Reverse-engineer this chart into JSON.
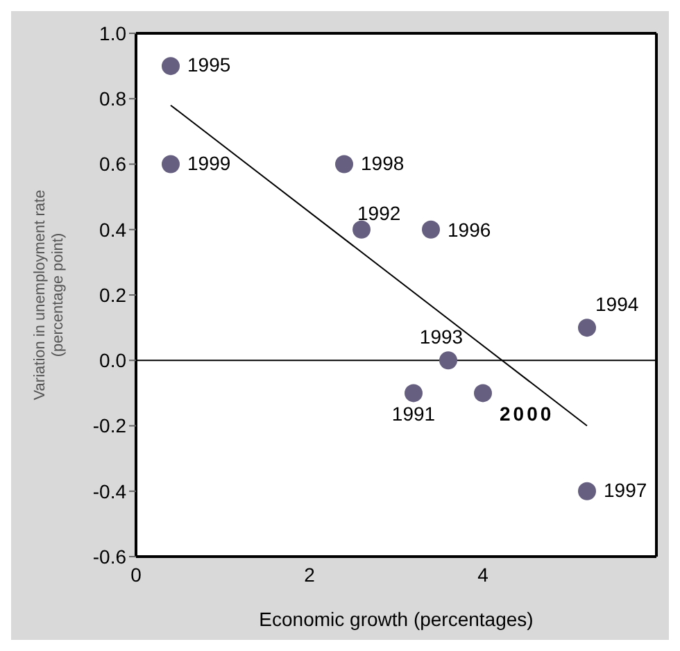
{
  "chart_data": {
    "type": "scatter",
    "xlabel": "Economic growth (percentages)",
    "ylabel": "Variation in unemployment rate\n(percentage point)",
    "xlim": [
      0,
      6
    ],
    "xticks": [
      0,
      2,
      4
    ],
    "ylim": [
      -0.6,
      1.0
    ],
    "yticks": [
      {
        "value": -0.6,
        "label": "-0.6"
      },
      {
        "value": -0.4,
        "label": "-0.4"
      },
      {
        "value": -0.2,
        "label": "-0.2"
      },
      {
        "value": 0,
        "label": "0.0"
      },
      {
        "value": 0.2,
        "label": "0.2"
      },
      {
        "value": 0.4,
        "label": "0.4"
      },
      {
        "value": 0.6,
        "label": "0.6"
      },
      {
        "value": 0.8,
        "label": "0.8"
      },
      {
        "value": 1.0,
        "label": "1.0"
      }
    ],
    "marker": "circle",
    "ref_lines": [
      {
        "axis": "y",
        "value": 0,
        "color": "#000000"
      }
    ],
    "annotations": [
      {
        "text": "1995",
        "x": 0.4,
        "y": 0.9
      },
      {
        "text": "1999",
        "x": 0.4,
        "y": 0.6
      },
      {
        "text": "1998",
        "x": 2.4,
        "y": 0.6
      },
      {
        "text": "1992",
        "x": 2.6,
        "y": 0.4
      },
      {
        "text": "1996",
        "x": 3.4,
        "y": 0.4
      },
      {
        "text": "1994",
        "x": 5.2,
        "y": 0.1
      },
      {
        "text": "1993",
        "x": 3.6,
        "y": 0.0
      },
      {
        "text": "1991",
        "x": 3.2,
        "y": -0.1
      },
      {
        "text": "2000",
        "x": 4.0,
        "y": -0.1
      },
      {
        "text": "1997",
        "x": 5.2,
        "y": -0.4
      }
    ],
    "series": [
      {
        "color": "#665f80",
        "x": [
          0.4,
          0.4,
          2.4,
          2.6,
          3.4,
          5.2,
          3.6,
          3.2,
          4.0,
          5.2
        ],
        "values": [
          0.9,
          0.6,
          0.6,
          0.4,
          0.4,
          0.1,
          0.0,
          -0.1,
          -0.1,
          -0.4
        ]
      },
      {
        "type": "line",
        "color": "#000000",
        "x": [
          0.4,
          5.2
        ],
        "values": [
          0.78,
          -0.2
        ],
        "marker": "none"
      }
    ]
  }
}
